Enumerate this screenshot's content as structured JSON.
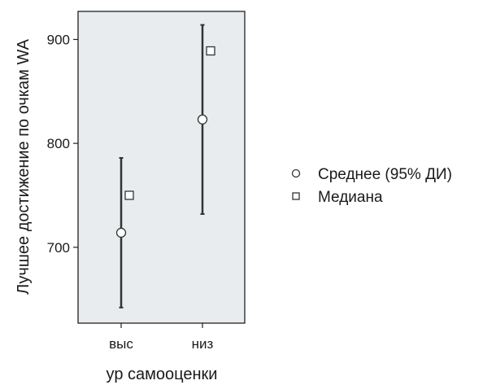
{
  "chart_data": {
    "type": "scatter",
    "xlabel": "ур самооценки",
    "ylabel": "Лучшее достижение по очкам WA",
    "categories": [
      "выс",
      "низ"
    ],
    "ylim": [
      627,
      927
    ],
    "yticks": [
      700,
      800,
      900
    ],
    "grid": false,
    "legend_position": "right",
    "plot_background": "#e8ecee",
    "series": [
      {
        "name": "Среднее (95% ДИ)",
        "marker": "circle",
        "values": [
          714,
          823
        ],
        "ci_low": [
          642,
          732
        ],
        "ci_high": [
          786,
          914
        ]
      },
      {
        "name": "Медиана",
        "marker": "square",
        "values": [
          750,
          889
        ]
      }
    ]
  }
}
